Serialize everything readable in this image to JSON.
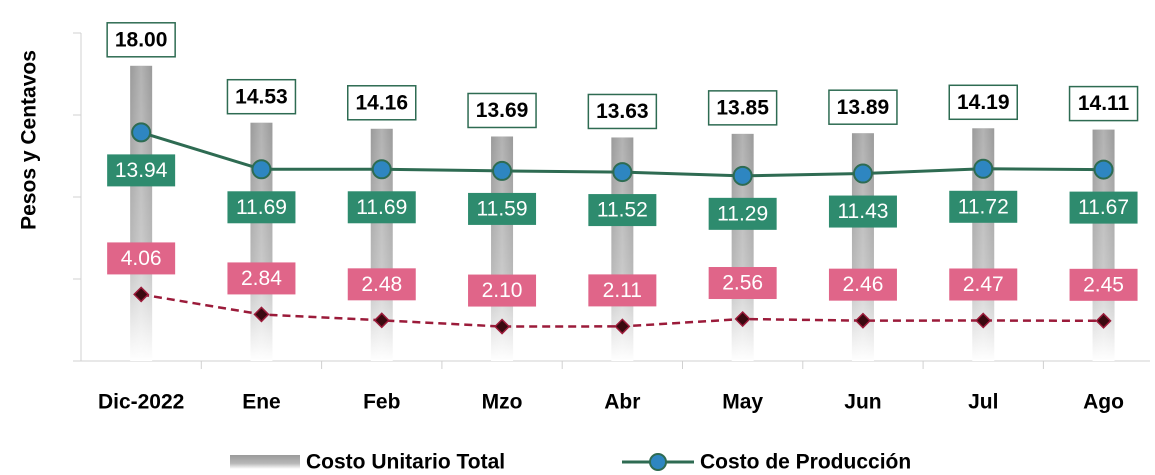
{
  "chart_data": {
    "type": "bar-line",
    "y_label": "Pesos y Centavos",
    "categories": [
      "Dic-2022",
      "Ene",
      "Feb",
      "Mzo",
      "Abr",
      "May",
      "Jun",
      "Jul",
      "Ago"
    ],
    "ylim": [
      0,
      20
    ],
    "yticks": [
      0,
      5,
      10,
      15,
      20
    ],
    "series": [
      {
        "name": "Costo Unitario Total",
        "type": "bar",
        "color": "#9a9a9a",
        "values": [
          18.0,
          14.53,
          14.16,
          13.69,
          13.63,
          13.85,
          13.89,
          14.19,
          14.11
        ],
        "value_labels": [
          "18.00",
          "14.53",
          "14.16",
          "13.69",
          "13.63",
          "13.85",
          "13.89",
          "14.19",
          "14.11"
        ]
      },
      {
        "name": "Costo de Producción",
        "type": "line",
        "color": "#2e6b52",
        "marker_color": "#2e86c1",
        "label_color": "#2e8b6e",
        "values": [
          13.94,
          11.69,
          11.69,
          11.59,
          11.52,
          11.29,
          11.43,
          11.72,
          11.67
        ],
        "value_labels": [
          "13.94",
          "11.69",
          "11.69",
          "11.59",
          "11.52",
          "11.29",
          "11.43",
          "11.72",
          "11.67"
        ]
      },
      {
        "type": "dashed-line",
        "color": "#9b1b3a",
        "marker_color": "#3a0a10",
        "label_color": "#e06589",
        "values": [
          4.06,
          2.84,
          2.48,
          2.1,
          2.11,
          2.56,
          2.46,
          2.47,
          2.45
        ],
        "value_labels": [
          "4.06",
          "2.84",
          "2.48",
          "2.10",
          "2.11",
          "2.56",
          "2.46",
          "2.47",
          "2.45"
        ]
      }
    ]
  }
}
